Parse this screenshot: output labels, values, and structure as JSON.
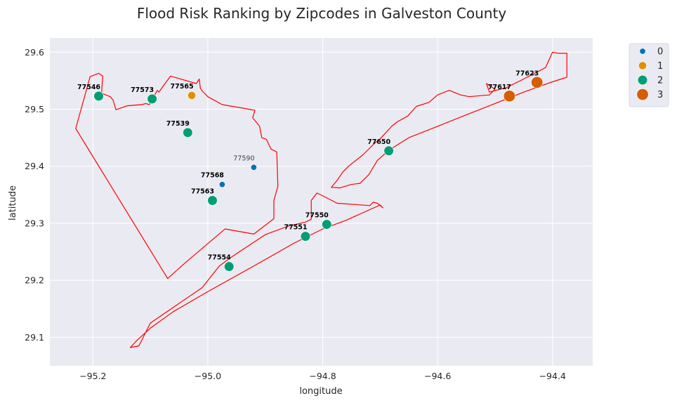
{
  "chart_data": {
    "type": "scatter",
    "title": "Flood Risk Ranking by Zipcodes in Galveston County",
    "xlabel": "longitude",
    "ylabel": "latitude",
    "xlim": [
      -95.275,
      -94.33
    ],
    "ylim": [
      29.05,
      29.625
    ],
    "xticks": [
      -95.2,
      -95.0,
      -94.8,
      -94.6,
      -94.4
    ],
    "yticks": [
      29.1,
      29.2,
      29.3,
      29.4,
      29.5,
      29.6
    ],
    "xtick_labels": [
      "−95.2",
      "−95.0",
      "−94.8",
      "−94.6",
      "−94.4"
    ],
    "ytick_labels": [
      "29.1",
      "29.2",
      "29.3",
      "29.4",
      "29.5",
      "29.6"
    ],
    "grid": true,
    "background": "#eaeaf2",
    "boundary_color": "#ff0000",
    "legend": {
      "placement": "outside-top-right",
      "entries": [
        {
          "label": "0",
          "color": "#0173b2"
        },
        {
          "label": "1",
          "color": "#de8f05"
        },
        {
          "label": "2",
          "color": "#029e73"
        },
        {
          "label": "3",
          "color": "#d55e00"
        }
      ]
    },
    "points": [
      {
        "zip": "77546",
        "x": -95.19,
        "y": 29.523,
        "rank": 2
      },
      {
        "zip": "77573",
        "x": -95.097,
        "y": 29.518,
        "rank": 2
      },
      {
        "zip": "77565",
        "x": -95.028,
        "y": 29.524,
        "rank": 1
      },
      {
        "zip": "77539",
        "x": -95.035,
        "y": 29.459,
        "rank": 2
      },
      {
        "zip": "77590",
        "x": -94.92,
        "y": 29.398,
        "rank": 0
      },
      {
        "zip": "77568",
        "x": -94.975,
        "y": 29.368,
        "rank": 0
      },
      {
        "zip": "77563",
        "x": -94.992,
        "y": 29.34,
        "rank": 2
      },
      {
        "zip": "77554",
        "x": -94.963,
        "y": 29.224,
        "rank": 2
      },
      {
        "zip": "77551",
        "x": -94.83,
        "y": 29.277,
        "rank": 2
      },
      {
        "zip": "77550",
        "x": -94.793,
        "y": 29.298,
        "rank": 2
      },
      {
        "zip": "77650",
        "x": -94.685,
        "y": 29.427,
        "rank": 2
      },
      {
        "zip": "77617",
        "x": -94.475,
        "y": 29.523,
        "rank": 3
      },
      {
        "zip": "77623",
        "x": -94.427,
        "y": 29.547,
        "rank": 3
      }
    ],
    "boundaries": [
      {
        "name": "mainland",
        "coords": [
          [
            -95.23,
            29.466
          ],
          [
            -95.205,
            29.557
          ],
          [
            -95.19,
            29.563
          ],
          [
            -95.183,
            29.558
          ],
          [
            -95.185,
            29.528
          ],
          [
            -95.17,
            29.522
          ],
          [
            -95.165,
            29.516
          ],
          [
            -95.16,
            29.499
          ],
          [
            -95.14,
            29.506
          ],
          [
            -95.115,
            29.508
          ],
          [
            -95.108,
            29.51
          ],
          [
            -95.102,
            29.508
          ],
          [
            -95.098,
            29.515
          ],
          [
            -95.088,
            29.533
          ],
          [
            -95.085,
            29.53
          ],
          [
            -95.078,
            29.54
          ],
          [
            -95.065,
            29.558
          ],
          [
            -95.02,
            29.545
          ],
          [
            -95.015,
            29.553
          ],
          [
            -95.013,
            29.537
          ],
          [
            -95.01,
            29.532
          ],
          [
            -95.0,
            29.522
          ],
          [
            -94.975,
            29.508
          ],
          [
            -94.94,
            29.502
          ],
          [
            -94.918,
            29.498
          ],
          [
            -94.922,
            29.485
          ],
          [
            -94.91,
            29.47
          ],
          [
            -94.906,
            29.45
          ],
          [
            -94.898,
            29.447
          ],
          [
            -94.89,
            29.43
          ],
          [
            -94.88,
            29.425
          ],
          [
            -94.878,
            29.365
          ],
          [
            -94.885,
            29.34
          ],
          [
            -94.885,
            29.308
          ],
          [
            -94.92,
            29.281
          ],
          [
            -94.97,
            29.29
          ],
          [
            -95.04,
            29.23
          ],
          [
            -95.07,
            29.203
          ],
          [
            -95.23,
            29.466
          ]
        ]
      },
      {
        "name": "island",
        "coords": [
          [
            -95.12,
            29.085
          ],
          [
            -95.1,
            29.125
          ],
          [
            -95.01,
            29.187
          ],
          [
            -94.98,
            29.225
          ],
          [
            -94.96,
            29.24
          ],
          [
            -94.9,
            29.28
          ],
          [
            -94.86,
            29.295
          ],
          [
            -94.83,
            29.302
          ],
          [
            -94.82,
            29.307
          ],
          [
            -94.82,
            29.34
          ],
          [
            -94.81,
            29.353
          ],
          [
            -94.79,
            29.343
          ],
          [
            -94.775,
            29.335
          ],
          [
            -94.745,
            29.333
          ],
          [
            -94.718,
            29.331
          ],
          [
            -94.712,
            29.337
          ],
          [
            -94.705,
            29.335
          ],
          [
            -94.695,
            29.327
          ],
          [
            -94.7,
            29.332
          ],
          [
            -94.76,
            29.305
          ],
          [
            -94.8,
            29.29
          ],
          [
            -94.85,
            29.265
          ],
          [
            -94.92,
            29.225
          ],
          [
            -95.0,
            29.18
          ],
          [
            -95.06,
            29.145
          ],
          [
            -95.1,
            29.116
          ],
          [
            -95.125,
            29.093
          ],
          [
            -95.135,
            29.082
          ],
          [
            -95.12,
            29.085
          ]
        ]
      },
      {
        "name": "bolivar",
        "coords": [
          [
            -94.735,
            29.37
          ],
          [
            -94.72,
            29.385
          ],
          [
            -94.705,
            29.41
          ],
          [
            -94.685,
            29.428
          ],
          [
            -94.65,
            29.45
          ],
          [
            -94.6,
            29.47
          ],
          [
            -94.55,
            29.49
          ],
          [
            -94.5,
            29.51
          ],
          [
            -94.45,
            29.53
          ],
          [
            -94.4,
            29.548
          ],
          [
            -94.375,
            29.556
          ],
          [
            -94.375,
            29.598
          ],
          [
            -94.39,
            29.598
          ],
          [
            -94.4,
            29.6
          ],
          [
            -94.412,
            29.573
          ],
          [
            -94.45,
            29.553
          ],
          [
            -94.48,
            29.538
          ],
          [
            -94.51,
            29.53
          ],
          [
            -94.515,
            29.545
          ],
          [
            -94.5,
            29.535
          ],
          [
            -94.51,
            29.525
          ],
          [
            -94.545,
            29.522
          ],
          [
            -94.56,
            29.525
          ],
          [
            -94.58,
            29.533
          ],
          [
            -94.6,
            29.525
          ],
          [
            -94.615,
            29.512
          ],
          [
            -94.637,
            29.505
          ],
          [
            -94.652,
            29.488
          ],
          [
            -94.67,
            29.478
          ],
          [
            -94.68,
            29.47
          ],
          [
            -94.7,
            29.448
          ],
          [
            -94.71,
            29.44
          ],
          [
            -94.73,
            29.42
          ],
          [
            -94.755,
            29.4
          ],
          [
            -94.765,
            29.39
          ],
          [
            -94.775,
            29.375
          ],
          [
            -94.785,
            29.363
          ],
          [
            -94.77,
            29.362
          ],
          [
            -94.75,
            29.368
          ],
          [
            -94.735,
            29.37
          ]
        ]
      }
    ]
  }
}
